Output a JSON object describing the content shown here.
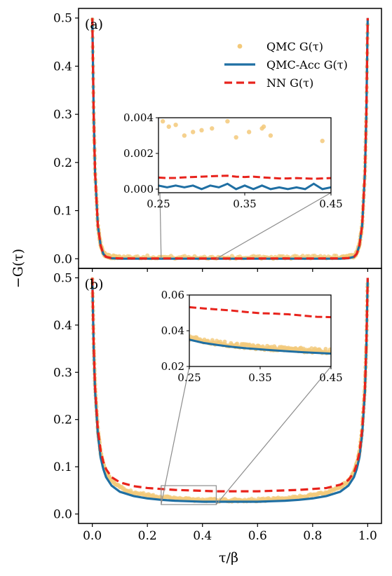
{
  "figure": {
    "ylabel": "−G(τ)",
    "xlabel": "τ/β"
  },
  "legend": {
    "qmc": "QMC G(τ)",
    "acc": "QMC-Acc G(τ)",
    "nn": "NN G(τ)"
  },
  "colors": {
    "qmc": "#f3c97a",
    "acc": "#1f6fa3",
    "nn": "#e8231c",
    "connector": "#8c8c8c"
  },
  "chart_data": [
    {
      "type": "line",
      "panel_label": "(a)",
      "xlim": [
        -0.05,
        1.05
      ],
      "ylim": [
        -0.02,
        0.52
      ],
      "xticks": [
        "0.0",
        "0.2",
        "0.4",
        "0.6",
        "0.8",
        "1.0"
      ],
      "yticks": [
        "0.0",
        "0.1",
        "0.2",
        "0.3",
        "0.4",
        "0.5"
      ],
      "series": [
        {
          "name": "QMC G(τ)",
          "style": "scatter",
          "x": [
            0.0,
            0.005,
            0.01,
            0.02,
            0.03,
            0.04,
            0.05,
            0.07,
            0.1,
            0.2,
            0.3,
            0.4,
            0.5,
            0.6,
            0.7,
            0.8,
            0.9,
            0.93,
            0.95,
            0.96,
            0.97,
            0.98,
            0.99,
            0.995,
            1.0
          ],
          "y": [
            0.5,
            0.3,
            0.18,
            0.07,
            0.03,
            0.012,
            0.006,
            0.004,
            0.004,
            0.004,
            0.003,
            0.003,
            0.003,
            0.003,
            0.003,
            0.004,
            0.004,
            0.004,
            0.006,
            0.012,
            0.03,
            0.07,
            0.18,
            0.3,
            0.5
          ]
        },
        {
          "name": "QMC-Acc G(τ)",
          "style": "solid",
          "x": [
            0.0,
            0.005,
            0.01,
            0.02,
            0.03,
            0.04,
            0.05,
            0.07,
            0.1,
            0.2,
            0.3,
            0.4,
            0.5,
            0.6,
            0.7,
            0.8,
            0.9,
            0.93,
            0.95,
            0.96,
            0.97,
            0.98,
            0.99,
            0.995,
            1.0
          ],
          "y": [
            0.5,
            0.3,
            0.18,
            0.07,
            0.028,
            0.01,
            0.004,
            0.001,
            0.0002,
            0.0001,
            0.0001,
            0.0001,
            0.0001,
            0.0001,
            0.0001,
            0.0001,
            0.0002,
            0.001,
            0.004,
            0.01,
            0.028,
            0.07,
            0.18,
            0.3,
            0.5
          ]
        },
        {
          "name": "NN G(τ)",
          "style": "dashed",
          "x": [
            0.0,
            0.005,
            0.01,
            0.02,
            0.03,
            0.04,
            0.05,
            0.07,
            0.1,
            0.2,
            0.3,
            0.4,
            0.5,
            0.6,
            0.7,
            0.8,
            0.9,
            0.93,
            0.95,
            0.96,
            0.97,
            0.98,
            0.99,
            0.995,
            1.0
          ],
          "y": [
            0.5,
            0.3,
            0.18,
            0.07,
            0.028,
            0.01,
            0.004,
            0.0015,
            0.0008,
            0.0006,
            0.0007,
            0.0006,
            0.0006,
            0.0006,
            0.0007,
            0.0006,
            0.0008,
            0.0015,
            0.004,
            0.01,
            0.028,
            0.07,
            0.18,
            0.3,
            0.5
          ]
        }
      ],
      "inset": {
        "xlim": [
          0.25,
          0.45
        ],
        "ylim": [
          -0.0002,
          0.004
        ],
        "xticks": [
          "0.25",
          "0.35",
          "0.45"
        ],
        "yticks": [
          "0.000",
          "0.002",
          "0.004"
        ],
        "qmc_points": {
          "x": [
            0.255,
            0.262,
            0.27,
            0.28,
            0.29,
            0.3,
            0.312,
            0.33,
            0.34,
            0.355,
            0.37,
            0.372,
            0.38,
            0.44
          ],
          "y": [
            0.0038,
            0.0035,
            0.0036,
            0.003,
            0.0032,
            0.0033,
            0.0034,
            0.0038,
            0.0029,
            0.0032,
            0.0034,
            0.0035,
            0.003,
            0.0027
          ]
        },
        "acc": {
          "x": [
            0.25,
            0.26,
            0.27,
            0.28,
            0.29,
            0.3,
            0.31,
            0.32,
            0.33,
            0.34,
            0.35,
            0.36,
            0.37,
            0.38,
            0.39,
            0.4,
            0.41,
            0.42,
            0.43,
            0.44,
            0.45
          ],
          "y": [
            0.0002,
            0.0001,
            0.0002,
            0.0001,
            0.0002,
            0.0,
            0.0002,
            0.0001,
            0.0003,
            0.0,
            0.0002,
            0.0,
            0.0002,
            0.0,
            0.0001,
            0.0,
            0.0001,
            0.0,
            0.0003,
            0.0,
            0.0001
          ]
        },
        "nn": {
          "x": [
            0.25,
            0.26,
            0.27,
            0.28,
            0.29,
            0.3,
            0.31,
            0.32,
            0.33,
            0.34,
            0.35,
            0.36,
            0.37,
            0.38,
            0.39,
            0.4,
            0.41,
            0.42,
            0.43,
            0.44,
            0.45
          ],
          "y": [
            0.00065,
            0.00062,
            0.00063,
            0.00066,
            0.00068,
            0.0007,
            0.00072,
            0.00074,
            0.00075,
            0.0007,
            0.00068,
            0.0007,
            0.00066,
            0.00063,
            0.0006,
            0.0006,
            0.00062,
            0.0006,
            0.00058,
            0.0006,
            0.00062
          ]
        }
      }
    },
    {
      "type": "line",
      "panel_label": "(b)",
      "xlim": [
        -0.05,
        1.05
      ],
      "ylim": [
        -0.02,
        0.52
      ],
      "xticks": [
        "0.0",
        "0.2",
        "0.4",
        "0.6",
        "0.8",
        "1.0"
      ],
      "yticks": [
        "0.0",
        "0.1",
        "0.2",
        "0.3",
        "0.4",
        "0.5"
      ],
      "series": [
        {
          "name": "QMC G(τ)",
          "style": "scatter",
          "x": [
            0.0,
            0.005,
            0.01,
            0.02,
            0.03,
            0.04,
            0.05,
            0.07,
            0.1,
            0.15,
            0.2,
            0.25,
            0.3,
            0.35,
            0.4,
            0.45,
            0.5,
            0.55,
            0.6,
            0.65,
            0.7,
            0.75,
            0.8,
            0.85,
            0.9,
            0.93,
            0.95,
            0.96,
            0.97,
            0.98,
            0.99,
            0.995,
            1.0
          ],
          "y": [
            0.5,
            0.36,
            0.27,
            0.18,
            0.13,
            0.105,
            0.088,
            0.07,
            0.056,
            0.045,
            0.04,
            0.036,
            0.033,
            0.031,
            0.03,
            0.029,
            0.029,
            0.029,
            0.03,
            0.031,
            0.033,
            0.036,
            0.04,
            0.045,
            0.056,
            0.07,
            0.088,
            0.105,
            0.13,
            0.18,
            0.27,
            0.36,
            0.5
          ]
        },
        {
          "name": "QMC-Acc G(τ)",
          "style": "solid",
          "x": [
            0.0,
            0.005,
            0.01,
            0.02,
            0.03,
            0.04,
            0.05,
            0.07,
            0.1,
            0.15,
            0.2,
            0.25,
            0.3,
            0.35,
            0.4,
            0.45,
            0.5,
            0.55,
            0.6,
            0.65,
            0.7,
            0.75,
            0.8,
            0.85,
            0.9,
            0.93,
            0.95,
            0.96,
            0.97,
            0.98,
            0.99,
            0.995,
            1.0
          ],
          "y": [
            0.5,
            0.35,
            0.26,
            0.17,
            0.12,
            0.095,
            0.078,
            0.06,
            0.047,
            0.038,
            0.033,
            0.03,
            0.028,
            0.027,
            0.026,
            0.026,
            0.026,
            0.026,
            0.026,
            0.027,
            0.028,
            0.03,
            0.033,
            0.038,
            0.047,
            0.06,
            0.078,
            0.095,
            0.12,
            0.17,
            0.26,
            0.35,
            0.5
          ]
        },
        {
          "name": "NN G(τ)",
          "style": "dashed",
          "x": [
            0.0,
            0.005,
            0.01,
            0.02,
            0.03,
            0.04,
            0.05,
            0.07,
            0.1,
            0.15,
            0.2,
            0.25,
            0.3,
            0.35,
            0.4,
            0.45,
            0.5,
            0.55,
            0.6,
            0.65,
            0.7,
            0.75,
            0.8,
            0.85,
            0.9,
            0.93,
            0.95,
            0.96,
            0.97,
            0.98,
            0.99,
            0.995,
            1.0
          ],
          "y": [
            0.5,
            0.36,
            0.27,
            0.18,
            0.135,
            0.11,
            0.095,
            0.078,
            0.067,
            0.059,
            0.055,
            0.053,
            0.051,
            0.05,
            0.049,
            0.048,
            0.048,
            0.048,
            0.048,
            0.049,
            0.05,
            0.051,
            0.053,
            0.055,
            0.062,
            0.072,
            0.088,
            0.105,
            0.13,
            0.18,
            0.27,
            0.36,
            0.5
          ]
        }
      ],
      "inset": {
        "xlim": [
          0.25,
          0.45
        ],
        "ylim": [
          0.02,
          0.06
        ],
        "xticks": [
          "0.25",
          "0.35",
          "0.45"
        ],
        "yticks": [
          "0.02",
          "0.04",
          "0.06"
        ],
        "qmc_band": {
          "x": [
            0.25,
            0.27,
            0.29,
            0.31,
            0.33,
            0.35,
            0.37,
            0.39,
            0.41,
            0.43,
            0.45
          ],
          "y": [
            0.0362,
            0.0345,
            0.0332,
            0.0322,
            0.0313,
            0.0306,
            0.0301,
            0.0297,
            0.0292,
            0.0289,
            0.0285
          ]
        },
        "acc": {
          "x": [
            0.25,
            0.27,
            0.29,
            0.31,
            0.33,
            0.35,
            0.37,
            0.39,
            0.41,
            0.43,
            0.45
          ],
          "y": [
            0.035,
            0.0332,
            0.032,
            0.031,
            0.0302,
            0.0296,
            0.029,
            0.0285,
            0.028,
            0.0276,
            0.0272
          ]
        },
        "nn": {
          "x": [
            0.25,
            0.27,
            0.29,
            0.31,
            0.33,
            0.35,
            0.37,
            0.39,
            0.41,
            0.43,
            0.45
          ],
          "y": [
            0.0532,
            0.0525,
            0.0519,
            0.0513,
            0.0505,
            0.0498,
            0.0496,
            0.0492,
            0.0485,
            0.0478,
            0.0476
          ]
        }
      }
    }
  ]
}
